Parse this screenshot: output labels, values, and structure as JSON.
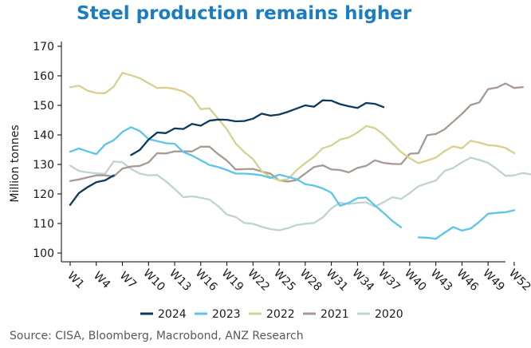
{
  "chart_data": {
    "type": "line",
    "title": "Steel production remains higher",
    "xlabel": "",
    "ylabel": "Million tonnes",
    "ylim": [
      100,
      170
    ],
    "yticks": [
      100,
      110,
      120,
      130,
      140,
      150,
      160,
      170
    ],
    "x_ticks": [
      "W1",
      "W4",
      "W7",
      "W10",
      "W13",
      "W16",
      "W19",
      "W22",
      "W25",
      "W28",
      "W31",
      "W34",
      "W37",
      "W40",
      "W43",
      "W46",
      "W49",
      "W52"
    ],
    "grid": false,
    "legend_position": "bottom",
    "series": [
      {
        "name": "2024",
        "color": "#0a3a5c",
        "segments": [
          [
            [
              1,
              116.3
            ],
            [
              2,
              120.3
            ],
            [
              3,
              122.3
            ],
            [
              4,
              124.0
            ],
            [
              5,
              124.6
            ],
            [
              6,
              126.3
            ]
          ],
          [
            [
              8,
              133.2
            ],
            [
              9,
              134.9
            ],
            [
              10,
              138.4
            ],
            [
              11,
              140.8
            ],
            [
              12,
              140.6
            ],
            [
              13,
              142.2
            ],
            [
              14,
              142.0
            ],
            [
              15,
              143.7
            ],
            [
              16,
              143.1
            ],
            [
              17,
              144.8
            ],
            [
              18,
              145.2
            ],
            [
              19,
              145.1
            ],
            [
              20,
              144.6
            ],
            [
              21,
              144.7
            ],
            [
              22,
              145.5
            ],
            [
              23,
              147.2
            ],
            [
              24,
              146.5
            ],
            [
              25,
              146.9
            ],
            [
              26,
              147.8
            ],
            [
              27,
              148.9
            ],
            [
              28,
              150.0
            ],
            [
              29,
              149.5
            ],
            [
              30,
              151.7
            ],
            [
              31,
              151.6
            ],
            [
              32,
              150.4
            ],
            [
              33,
              149.7
            ],
            [
              34,
              149.1
            ],
            [
              35,
              150.8
            ],
            [
              36,
              150.5
            ],
            [
              37,
              149.4
            ]
          ]
        ]
      },
      {
        "name": "2023",
        "color": "#5bc6e8",
        "segments": [
          [
            [
              1,
              134.3
            ],
            [
              2,
              135.4
            ],
            [
              3,
              134.4
            ],
            [
              4,
              133.5
            ],
            [
              5,
              136.7
            ],
            [
              6,
              138.2
            ],
            [
              7,
              141.0
            ],
            [
              8,
              142.6
            ],
            [
              9,
              141.3
            ],
            [
              10,
              138.6
            ],
            [
              11,
              137.9
            ],
            [
              12,
              137.2
            ],
            [
              13,
              137.0
            ],
            [
              14,
              134.2
            ],
            [
              15,
              133.0
            ],
            [
              16,
              131.4
            ],
            [
              17,
              129.8
            ],
            [
              18,
              129.1
            ],
            [
              19,
              128.1
            ],
            [
              20,
              126.9
            ],
            [
              21,
              126.9
            ],
            [
              22,
              126.7
            ],
            [
              23,
              126.3
            ],
            [
              24,
              125.4
            ],
            [
              25,
              126.5
            ],
            [
              26,
              125.8
            ],
            [
              27,
              125.0
            ],
            [
              28,
              123.3
            ],
            [
              29,
              122.8
            ],
            [
              30,
              121.9
            ],
            [
              31,
              120.4
            ],
            [
              32,
              116.0
            ],
            [
              33,
              117.0
            ],
            [
              34,
              118.6
            ],
            [
              35,
              118.8
            ],
            [
              36,
              116.1
            ],
            [
              37,
              113.6
            ],
            [
              38,
              110.9
            ],
            [
              39,
              108.7
            ]
          ],
          [
            [
              41,
              105.3
            ],
            [
              42,
              105.2
            ],
            [
              43,
              104.8
            ],
            [
              44,
              106.9
            ],
            [
              45,
              108.8
            ],
            [
              46,
              107.6
            ],
            [
              47,
              108.3
            ],
            [
              48,
              110.6
            ],
            [
              49,
              113.3
            ],
            [
              50,
              113.6
            ],
            [
              51,
              113.8
            ],
            [
              52,
              114.5
            ]
          ]
        ]
      },
      {
        "name": "2022",
        "color": "#d9d08e",
        "segments": [
          [
            [
              1,
              156.1
            ],
            [
              2,
              156.7
            ],
            [
              3,
              155.0
            ],
            [
              4,
              154.2
            ],
            [
              5,
              154.1
            ],
            [
              6,
              156.3
            ],
            [
              7,
              161.0
            ],
            [
              8,
              160.2
            ],
            [
              9,
              159.2
            ],
            [
              10,
              157.5
            ],
            [
              11,
              155.9
            ],
            [
              12,
              156.0
            ],
            [
              13,
              155.6
            ],
            [
              14,
              154.7
            ],
            [
              15,
              152.8
            ],
            [
              16,
              148.7
            ],
            [
              17,
              149.0
            ],
            [
              18,
              145.5
            ],
            [
              19,
              141.9
            ],
            [
              20,
              137.1
            ],
            [
              21,
              134.2
            ],
            [
              22,
              131.8
            ],
            [
              23,
              127.7
            ],
            [
              24,
              125.7
            ],
            [
              25,
              124.6
            ],
            [
              26,
              125.0
            ],
            [
              27,
              128.0
            ],
            [
              28,
              130.4
            ],
            [
              29,
              132.6
            ],
            [
              30,
              135.5
            ],
            [
              31,
              136.4
            ],
            [
              32,
              138.4
            ],
            [
              33,
              139.1
            ],
            [
              34,
              140.8
            ],
            [
              35,
              143.0
            ],
            [
              36,
              142.3
            ],
            [
              37,
              140.1
            ],
            [
              38,
              137.2
            ],
            [
              39,
              134.2
            ],
            [
              40,
              132.1
            ],
            [
              41,
              130.4
            ],
            [
              42,
              131.3
            ],
            [
              43,
              132.3
            ],
            [
              44,
              134.5
            ],
            [
              45,
              136.1
            ],
            [
              46,
              135.5
            ],
            [
              47,
              138.0
            ],
            [
              48,
              137.4
            ],
            [
              49,
              136.5
            ],
            [
              50,
              136.3
            ],
            [
              51,
              135.6
            ],
            [
              52,
              133.8
            ]
          ]
        ]
      },
      {
        "name": "2021",
        "color": "#a89a93",
        "segments": [
          [
            [
              1,
              124.4
            ],
            [
              2,
              124.9
            ],
            [
              3,
              125.6
            ],
            [
              4,
              126.3
            ],
            [
              5,
              126.3
            ],
            [
              6,
              125.9
            ],
            [
              7,
              128.6
            ],
            [
              8,
              129.3
            ],
            [
              9,
              129.5
            ],
            [
              10,
              130.7
            ],
            [
              11,
              133.8
            ],
            [
              12,
              133.7
            ],
            [
              13,
              134.4
            ],
            [
              14,
              134.4
            ],
            [
              15,
              134.4
            ],
            [
              16,
              136.0
            ],
            [
              17,
              136.0
            ],
            [
              18,
              133.5
            ],
            [
              19,
              131.3
            ],
            [
              20,
              128.3
            ],
            [
              21,
              128.4
            ],
            [
              22,
              128.5
            ],
            [
              23,
              127.6
            ],
            [
              24,
              126.9
            ],
            [
              25,
              124.6
            ],
            [
              26,
              124.2
            ],
            [
              27,
              124.7
            ],
            [
              28,
              126.9
            ],
            [
              29,
              129.1
            ],
            [
              30,
              129.7
            ],
            [
              31,
              128.3
            ],
            [
              32,
              128.1
            ],
            [
              33,
              127.3
            ],
            [
              34,
              128.8
            ],
            [
              35,
              129.5
            ],
            [
              36,
              131.4
            ],
            [
              37,
              130.5
            ],
            [
              38,
              130.2
            ],
            [
              39,
              130.1
            ],
            [
              40,
              133.6
            ],
            [
              41,
              133.8
            ],
            [
              42,
              139.9
            ],
            [
              43,
              140.3
            ],
            [
              44,
              141.9
            ],
            [
              45,
              144.5
            ],
            [
              46,
              147.1
            ],
            [
              47,
              150.1
            ],
            [
              48,
              151.0
            ],
            [
              49,
              155.5
            ],
            [
              50,
              156.0
            ],
            [
              51,
              157.4
            ],
            [
              52,
              155.9
            ],
            [
              53,
              156.2
            ]
          ]
        ]
      },
      {
        "name": "2020",
        "color": "#bfd3d1",
        "segments": [
          [
            [
              1,
              129.6
            ],
            [
              2,
              127.8
            ],
            [
              3,
              127.3
            ],
            [
              4,
              127.0
            ],
            [
              5,
              126.8
            ],
            [
              6,
              131.0
            ],
            [
              7,
              130.7
            ],
            [
              8,
              128.5
            ],
            [
              9,
              126.9
            ],
            [
              10,
              126.3
            ],
            [
              11,
              126.4
            ],
            [
              12,
              124.3
            ],
            [
              13,
              121.7
            ],
            [
              14,
              118.9
            ],
            [
              15,
              119.2
            ],
            [
              16,
              118.7
            ],
            [
              17,
              118.1
            ],
            [
              18,
              115.9
            ],
            [
              19,
              113.0
            ],
            [
              20,
              112.2
            ],
            [
              21,
              110.2
            ],
            [
              22,
              109.9
            ],
            [
              23,
              108.9
            ],
            [
              24,
              108.1
            ],
            [
              25,
              107.7
            ],
            [
              26,
              108.4
            ],
            [
              27,
              109.5
            ],
            [
              28,
              109.9
            ],
            [
              29,
              110.2
            ],
            [
              30,
              112.0
            ],
            [
              31,
              115.1
            ],
            [
              32,
              117.0
            ],
            [
              33,
              116.6
            ],
            [
              34,
              117.0
            ],
            [
              35,
              117.2
            ],
            [
              36,
              115.7
            ],
            [
              37,
              117.2
            ],
            [
              38,
              118.9
            ],
            [
              39,
              118.3
            ],
            [
              40,
              120.3
            ],
            [
              41,
              122.6
            ],
            [
              42,
              123.6
            ],
            [
              43,
              124.5
            ],
            [
              44,
              127.8
            ],
            [
              45,
              128.8
            ],
            [
              46,
              130.7
            ],
            [
              47,
              132.3
            ],
            [
              48,
              131.5
            ],
            [
              49,
              130.5
            ],
            [
              50,
              128.5
            ],
            [
              51,
              126.1
            ],
            [
              52,
              126.3
            ],
            [
              53,
              127.1
            ],
            [
              54,
              126.6
            ]
          ]
        ]
      }
    ],
    "source": "Source: CISA, Bloomberg, Macrobond, ANZ Research"
  }
}
